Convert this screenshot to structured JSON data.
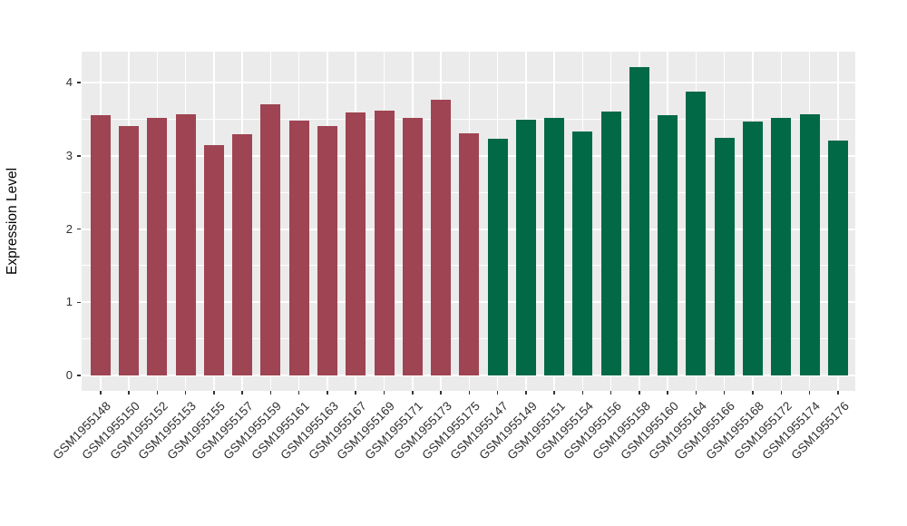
{
  "chart_data": {
    "type": "bar",
    "title": "",
    "xlabel": "",
    "ylabel": "Expression Level",
    "ylim": [
      0,
      4.42
    ],
    "yticks": [
      0,
      1,
      2,
      3,
      4
    ],
    "yticks_minor": [
      0.5,
      1.5,
      2.5,
      3.5
    ],
    "legend": "none",
    "grid": "white major and minor horizontal lines, white vertical lines at each category, on grey panel",
    "panel_bg": "#EBEBEB",
    "grid_color": "#FFFFFF",
    "axis_text_color": "#303030",
    "group_colors": {
      "red": "#9E4452",
      "green": "#026947"
    },
    "bars": [
      {
        "label": "GSM1955148",
        "value": 3.56,
        "group": "red"
      },
      {
        "label": "GSM1955150",
        "value": 3.41,
        "group": "red"
      },
      {
        "label": "GSM1955152",
        "value": 3.52,
        "group": "red"
      },
      {
        "label": "GSM1955153",
        "value": 3.57,
        "group": "red"
      },
      {
        "label": "GSM1955155",
        "value": 3.15,
        "group": "red"
      },
      {
        "label": "GSM1955157",
        "value": 3.29,
        "group": "red"
      },
      {
        "label": "GSM1955159",
        "value": 3.7,
        "group": "red"
      },
      {
        "label": "GSM1955161",
        "value": 3.48,
        "group": "red"
      },
      {
        "label": "GSM1955163",
        "value": 3.4,
        "group": "red"
      },
      {
        "label": "GSM1955167",
        "value": 3.59,
        "group": "red"
      },
      {
        "label": "GSM1955169",
        "value": 3.62,
        "group": "red"
      },
      {
        "label": "GSM1955171",
        "value": 3.52,
        "group": "red"
      },
      {
        "label": "GSM1955173",
        "value": 3.76,
        "group": "red"
      },
      {
        "label": "GSM1955175",
        "value": 3.31,
        "group": "red"
      },
      {
        "label": "GSM1955147",
        "value": 3.23,
        "group": "green"
      },
      {
        "label": "GSM1955149",
        "value": 3.49,
        "group": "green"
      },
      {
        "label": "GSM1955151",
        "value": 3.52,
        "group": "green"
      },
      {
        "label": "GSM1955154",
        "value": 3.33,
        "group": "green"
      },
      {
        "label": "GSM1955156",
        "value": 3.6,
        "group": "green"
      },
      {
        "label": "GSM1955158",
        "value": 4.21,
        "group": "green"
      },
      {
        "label": "GSM1955160",
        "value": 3.55,
        "group": "green"
      },
      {
        "label": "GSM1955164",
        "value": 3.88,
        "group": "green"
      },
      {
        "label": "GSM1955166",
        "value": 3.25,
        "group": "green"
      },
      {
        "label": "GSM1955168",
        "value": 3.47,
        "group": "green"
      },
      {
        "label": "GSM1955172",
        "value": 3.52,
        "group": "green"
      },
      {
        "label": "GSM1955174",
        "value": 3.57,
        "group": "green"
      },
      {
        "label": "GSM1955176",
        "value": 3.21,
        "group": "green"
      }
    ]
  }
}
